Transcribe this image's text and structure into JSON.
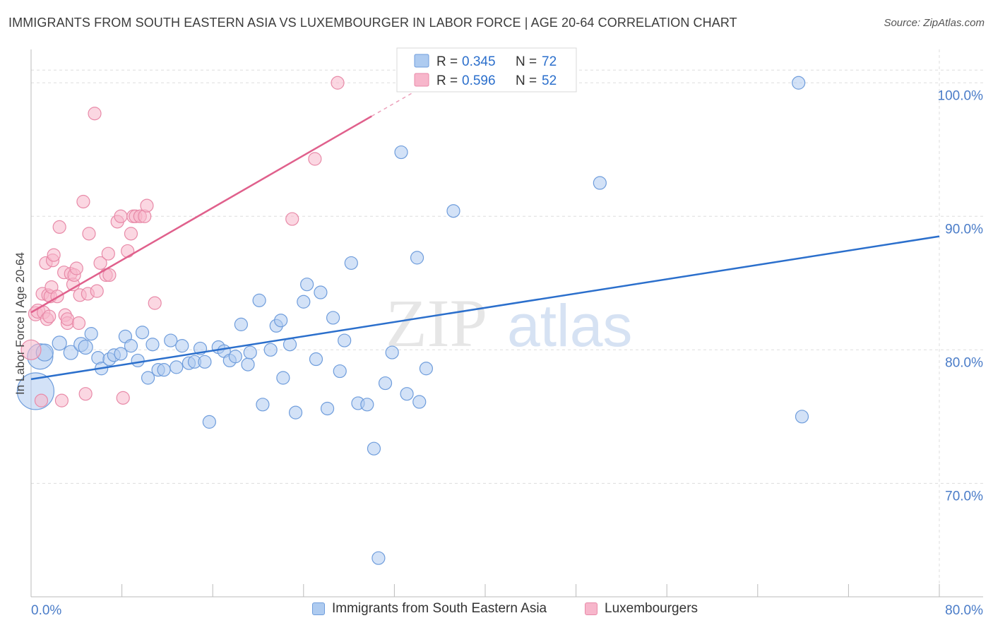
{
  "header": {
    "title": "IMMIGRANTS FROM SOUTH EASTERN ASIA VS LUXEMBOURGER IN LABOR FORCE | AGE 20-64 CORRELATION CHART",
    "source": "Source: ZipAtlas.com"
  },
  "watermark": {
    "part1": "ZIP",
    "part2": "atlas"
  },
  "colors": {
    "blue_fill": "#aecbf0",
    "blue_stroke": "#6f9ddc",
    "blue_line": "#2b6fcc",
    "pink_fill": "#f7b6cb",
    "pink_stroke": "#e88aa8",
    "pink_line": "#e0608c",
    "grid": "#dddddd",
    "axis_text": "#4a7cc8"
  },
  "legend_top": [
    {
      "r_label": "R =",
      "r_value": "0.345",
      "n_label": "N =",
      "n_value": "72"
    },
    {
      "r_label": "R =",
      "r_value": "0.596",
      "n_label": "N =",
      "n_value": "52"
    }
  ],
  "legend_bottom": [
    {
      "label": "Immigrants from South Eastern Asia"
    },
    {
      "label": "Luxembourgers"
    }
  ],
  "chart_data": {
    "type": "scatter",
    "title": "IMMIGRANTS FROM SOUTH EASTERN ASIA VS LUXEMBOURGER IN LABOR FORCE | AGE 20-64 CORRELATION CHART",
    "xlabel": "",
    "ylabel": "In Labor Force | Age 20-64",
    "xlim": [
      0,
      80
    ],
    "ylim": [
      61.5,
      102.5
    ],
    "x_tick_labels": [
      "0.0%",
      "80.0%"
    ],
    "y_ticks": [
      70,
      80,
      90,
      100
    ],
    "y_tick_labels": [
      "70.0%",
      "80.0%",
      "90.0%",
      "100.0%"
    ],
    "grid": true,
    "series": [
      {
        "name": "Immigrants from South Eastern Asia",
        "R": 0.345,
        "N": 72,
        "trend": {
          "x": [
            0,
            80
          ],
          "y": [
            77.8,
            88.5
          ],
          "dashed_extension": false
        },
        "points": [
          [
            0.4,
            76.9,
            26
          ],
          [
            0.8,
            79.5,
            18
          ],
          [
            1.2,
            79.8,
            12
          ],
          [
            2.5,
            80.5,
            10
          ],
          [
            3.5,
            79.8,
            10
          ],
          [
            4.4,
            80.4,
            10
          ],
          [
            4.8,
            80.2,
            10
          ],
          [
            5.3,
            81.2,
            9
          ],
          [
            5.9,
            79.4,
            9
          ],
          [
            6.2,
            78.6,
            9
          ],
          [
            6.9,
            79.3,
            9
          ],
          [
            7.3,
            79.6,
            9
          ],
          [
            7.9,
            79.7,
            9
          ],
          [
            8.3,
            81.0,
            9
          ],
          [
            8.8,
            80.3,
            9
          ],
          [
            9.4,
            79.2,
            9
          ],
          [
            9.8,
            81.3,
            9
          ],
          [
            10.3,
            77.9,
            9
          ],
          [
            10.7,
            80.4,
            9
          ],
          [
            11.2,
            78.5,
            9
          ],
          [
            11.7,
            78.5,
            9
          ],
          [
            12.3,
            80.7,
            9
          ],
          [
            12.8,
            78.7,
            9
          ],
          [
            13.3,
            80.3,
            9
          ],
          [
            13.9,
            79.0,
            9
          ],
          [
            14.4,
            79.1,
            9
          ],
          [
            14.9,
            80.1,
            9
          ],
          [
            15.3,
            79.1,
            9
          ],
          [
            15.7,
            74.6,
            9
          ],
          [
            16.5,
            80.2,
            9
          ],
          [
            17.0,
            79.9,
            9
          ],
          [
            17.5,
            79.2,
            9
          ],
          [
            18.0,
            79.5,
            9
          ],
          [
            18.5,
            81.9,
            9
          ],
          [
            19.1,
            78.9,
            9
          ],
          [
            19.3,
            79.8,
            9
          ],
          [
            20.1,
            83.7,
            9
          ],
          [
            20.4,
            75.9,
            9
          ],
          [
            21.1,
            80.0,
            9
          ],
          [
            21.6,
            81.8,
            9
          ],
          [
            22.0,
            82.2,
            9
          ],
          [
            22.2,
            77.9,
            9
          ],
          [
            22.8,
            80.4,
            9
          ],
          [
            23.3,
            75.3,
            9
          ],
          [
            24.0,
            83.6,
            9
          ],
          [
            24.3,
            84.9,
            9
          ],
          [
            25.1,
            79.3,
            9
          ],
          [
            25.5,
            84.3,
            9
          ],
          [
            26.1,
            75.6,
            9
          ],
          [
            26.6,
            82.4,
            9
          ],
          [
            27.2,
            78.4,
            9
          ],
          [
            27.6,
            80.7,
            9
          ],
          [
            28.2,
            86.5,
            9
          ],
          [
            28.8,
            76.0,
            9
          ],
          [
            29.6,
            75.9,
            9
          ],
          [
            30.2,
            72.6,
            9
          ],
          [
            30.6,
            64.4,
            9
          ],
          [
            31.2,
            77.5,
            9
          ],
          [
            31.8,
            79.8,
            9
          ],
          [
            32.6,
            94.8,
            9
          ],
          [
            33.1,
            76.7,
            9
          ],
          [
            34.0,
            86.9,
            9
          ],
          [
            34.2,
            76.1,
            9
          ],
          [
            34.8,
            78.6,
            9
          ],
          [
            37.2,
            90.4,
            9
          ],
          [
            43.3,
            100.0,
            9
          ],
          [
            50.1,
            92.5,
            9
          ],
          [
            67.6,
            100.0,
            9
          ],
          [
            67.9,
            75.0,
            9
          ]
        ]
      },
      {
        "name": "Luxembourgers",
        "R": 0.596,
        "N": 52,
        "trend": {
          "x": [
            0,
            30,
            33.5
          ],
          "y": [
            82.8,
            97.5,
            99.2
          ],
          "dashed_extension": true
        },
        "points": [
          [
            0.0,
            80.0,
            14
          ],
          [
            0.4,
            82.7,
            10
          ],
          [
            0.6,
            82.9,
            10
          ],
          [
            0.9,
            76.2,
            9
          ],
          [
            1.0,
            84.2,
            9
          ],
          [
            1.1,
            82.8,
            9
          ],
          [
            1.3,
            86.5,
            9
          ],
          [
            1.4,
            82.3,
            9
          ],
          [
            1.5,
            84.1,
            9
          ],
          [
            1.6,
            82.5,
            9
          ],
          [
            1.7,
            84.0,
            9
          ],
          [
            1.8,
            84.7,
            9
          ],
          [
            1.9,
            86.7,
            9
          ],
          [
            2.0,
            87.1,
            9
          ],
          [
            2.3,
            84.0,
            9
          ],
          [
            2.5,
            89.2,
            9
          ],
          [
            2.7,
            76.2,
            9
          ],
          [
            2.9,
            85.8,
            9
          ],
          [
            3.0,
            82.6,
            9
          ],
          [
            3.2,
            82.0,
            9
          ],
          [
            3.2,
            82.3,
            9
          ],
          [
            3.5,
            85.7,
            9
          ],
          [
            3.7,
            84.9,
            9
          ],
          [
            3.8,
            85.6,
            9
          ],
          [
            4.0,
            86.1,
            9
          ],
          [
            4.2,
            82.0,
            9
          ],
          [
            4.3,
            84.1,
            9
          ],
          [
            4.6,
            91.1,
            9
          ],
          [
            4.8,
            76.7,
            9
          ],
          [
            5.0,
            84.2,
            9
          ],
          [
            5.1,
            88.7,
            9
          ],
          [
            5.6,
            97.7,
            9
          ],
          [
            5.8,
            84.4,
            9
          ],
          [
            6.1,
            86.5,
            9
          ],
          [
            6.6,
            85.6,
            9
          ],
          [
            6.8,
            87.2,
            9
          ],
          [
            6.9,
            85.6,
            9
          ],
          [
            7.6,
            89.6,
            9
          ],
          [
            7.9,
            90.0,
            9
          ],
          [
            8.1,
            76.4,
            9
          ],
          [
            8.5,
            87.4,
            9
          ],
          [
            8.8,
            88.7,
            9
          ],
          [
            9.0,
            90.0,
            9
          ],
          [
            9.2,
            90.0,
            9
          ],
          [
            9.6,
            90.0,
            9
          ],
          [
            10.0,
            90.0,
            9
          ],
          [
            10.2,
            90.8,
            9
          ],
          [
            10.9,
            83.5,
            9
          ],
          [
            23.0,
            89.8,
            9
          ],
          [
            25.0,
            94.3,
            9
          ],
          [
            27.0,
            100.0,
            9
          ]
        ]
      }
    ]
  }
}
